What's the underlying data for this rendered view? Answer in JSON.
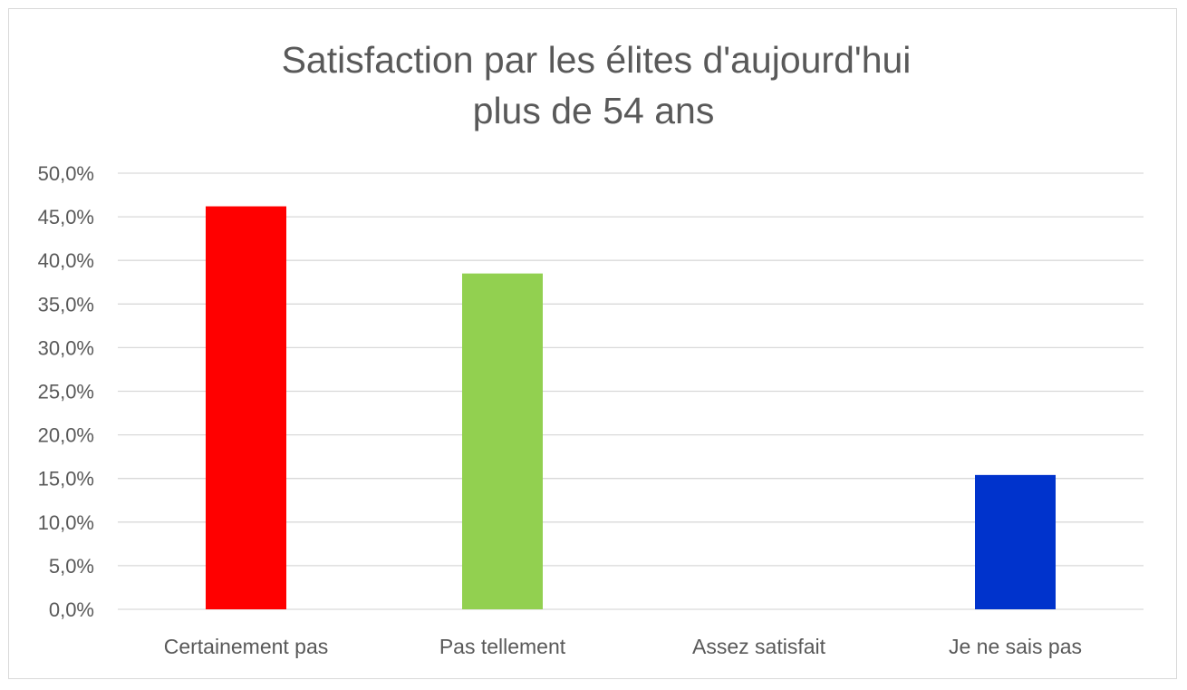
{
  "chart_data": {
    "type": "bar",
    "title": [
      "Satisfaction par les élites d'aujourd'hui",
      "plus de 54 ans"
    ],
    "categories": [
      "Certainement pas",
      "Pas tellement",
      "Assez satisfait",
      "Je ne sais pas"
    ],
    "values": [
      46.2,
      38.5,
      0.0,
      15.4
    ],
    "colors": [
      "#ff0000",
      "#92d050",
      "#92d050",
      "#0033cc"
    ],
    "ylim": [
      0,
      50
    ],
    "y_ticks": [
      "0,0%",
      "5,0%",
      "10,0%",
      "15,0%",
      "20,0%",
      "25,0%",
      "30,0%",
      "35,0%",
      "40,0%",
      "45,0%",
      "50,0%"
    ],
    "y_tick_values": [
      0,
      5,
      10,
      15,
      20,
      25,
      30,
      35,
      40,
      45,
      50
    ],
    "grid": true,
    "legend": "none"
  }
}
